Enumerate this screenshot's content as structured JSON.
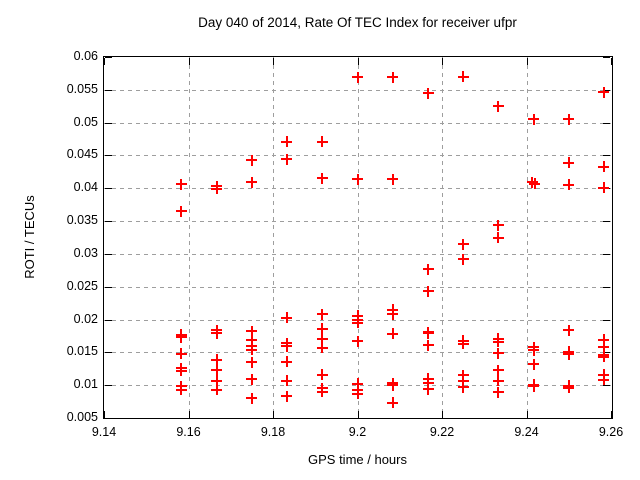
{
  "colors": {
    "background": "#ffffff",
    "marker": "#ff0000",
    "grid": "#9e9e9e",
    "axis": "#000000",
    "text": "#000000"
  },
  "chart_data": {
    "type": "scatter",
    "title": "Day 040 of 2014, Rate Of TEC Index for receiver ufpr",
    "xlabel": "GPS time / hours",
    "ylabel": "ROTI / TECUs",
    "xlim": [
      9.14,
      9.26
    ],
    "ylim": [
      0.005,
      0.06
    ],
    "xtick_values": [
      9.14,
      9.16,
      9.18,
      9.2,
      9.22,
      9.24,
      9.26
    ],
    "xtick_labels": [
      "9.14",
      "9.16",
      "9.18",
      "9.2",
      "9.22",
      "9.24",
      "9.26"
    ],
    "ytick_values": [
      0.005,
      0.01,
      0.015,
      0.02,
      0.025,
      0.03,
      0.035,
      0.04,
      0.045,
      0.05,
      0.055,
      0.06
    ],
    "ytick_labels": [
      "0.005",
      "0.01",
      "0.015",
      "0.02",
      "0.025",
      "0.03",
      "0.035",
      "0.04",
      "0.045",
      "0.05",
      "0.055",
      "0.06"
    ],
    "grid": true,
    "legend": "none",
    "marker": "plus",
    "series": [
      {
        "name": "ROTI",
        "points": [
          [
            9.1583,
            0.0406
          ],
          [
            9.1583,
            0.0365
          ],
          [
            9.1583,
            0.0177
          ],
          [
            9.1583,
            0.0173
          ],
          [
            9.1583,
            0.0148
          ],
          [
            9.1583,
            0.0126
          ],
          [
            9.1583,
            0.0122
          ],
          [
            9.1583,
            0.0098
          ],
          [
            9.1583,
            0.0093
          ],
          [
            9.1667,
            0.0403
          ],
          [
            9.1667,
            0.0399
          ],
          [
            9.1667,
            0.0184
          ],
          [
            9.1667,
            0.0179
          ],
          [
            9.1667,
            0.0139
          ],
          [
            9.1667,
            0.0123
          ],
          [
            9.1667,
            0.0107
          ],
          [
            9.1667,
            0.0093
          ],
          [
            9.175,
            0.0443
          ],
          [
            9.175,
            0.0409
          ],
          [
            9.175,
            0.0182
          ],
          [
            9.175,
            0.0169
          ],
          [
            9.175,
            0.016
          ],
          [
            9.175,
            0.0154
          ],
          [
            9.175,
            0.0135
          ],
          [
            9.175,
            0.0109
          ],
          [
            9.175,
            0.008
          ],
          [
            9.1833,
            0.0471
          ],
          [
            9.1833,
            0.0444
          ],
          [
            9.1833,
            0.0203
          ],
          [
            9.1833,
            0.0164
          ],
          [
            9.1833,
            0.0159
          ],
          [
            9.1833,
            0.0136
          ],
          [
            9.1833,
            0.0107
          ],
          [
            9.1833,
            0.0083
          ],
          [
            9.1917,
            0.0471
          ],
          [
            9.1917,
            0.0415
          ],
          [
            9.1917,
            0.0208
          ],
          [
            9.1917,
            0.0186
          ],
          [
            9.1917,
            0.0171
          ],
          [
            9.1917,
            0.0157
          ],
          [
            9.1917,
            0.0116
          ],
          [
            9.1917,
            0.0095
          ],
          [
            9.1917,
            0.009
          ],
          [
            9.2,
            0.0569
          ],
          [
            9.2,
            0.0414
          ],
          [
            9.2,
            0.0206
          ],
          [
            9.2,
            0.02
          ],
          [
            9.2,
            0.0195
          ],
          [
            9.2,
            0.0167
          ],
          [
            9.2,
            0.0102
          ],
          [
            9.2,
            0.0092
          ],
          [
            9.2,
            0.0087
          ],
          [
            9.2083,
            0.0569
          ],
          [
            9.2083,
            0.0414
          ],
          [
            9.2083,
            0.0215
          ],
          [
            9.2083,
            0.0208
          ],
          [
            9.2083,
            0.0178
          ],
          [
            9.2083,
            0.0103
          ],
          [
            9.2083,
            0.01
          ],
          [
            9.2083,
            0.0073
          ],
          [
            9.2167,
            0.0545
          ],
          [
            9.2167,
            0.0277
          ],
          [
            9.2167,
            0.0243
          ],
          [
            9.2167,
            0.0181
          ],
          [
            9.2167,
            0.0179
          ],
          [
            9.2167,
            0.0161
          ],
          [
            9.2167,
            0.011
          ],
          [
            9.2167,
            0.0104
          ],
          [
            9.2167,
            0.0094
          ],
          [
            9.225,
            0.057
          ],
          [
            9.225,
            0.0315
          ],
          [
            9.225,
            0.0292
          ],
          [
            9.225,
            0.0168
          ],
          [
            9.225,
            0.0163
          ],
          [
            9.225,
            0.0115
          ],
          [
            9.225,
            0.0107
          ],
          [
            9.225,
            0.0097
          ],
          [
            9.2333,
            0.0525
          ],
          [
            9.2333,
            0.0344
          ],
          [
            9.2333,
            0.0325
          ],
          [
            9.2333,
            0.0171
          ],
          [
            9.2333,
            0.0166
          ],
          [
            9.2333,
            0.0149
          ],
          [
            9.2333,
            0.0123
          ],
          [
            9.2333,
            0.0107
          ],
          [
            9.2333,
            0.0089
          ],
          [
            9.2417,
            0.0505
          ],
          [
            9.2414,
            0.0409
          ],
          [
            9.242,
            0.0407
          ],
          [
            9.2417,
            0.0158
          ],
          [
            9.2417,
            0.0153
          ],
          [
            9.2417,
            0.0132
          ],
          [
            9.2417,
            0.0101
          ],
          [
            9.2417,
            0.0098
          ],
          [
            9.25,
            0.0505
          ],
          [
            9.25,
            0.0439
          ],
          [
            9.25,
            0.0405
          ],
          [
            9.25,
            0.0184
          ],
          [
            9.25,
            0.0151
          ],
          [
            9.25,
            0.0147
          ],
          [
            9.25,
            0.0099
          ],
          [
            9.25,
            0.0096
          ],
          [
            9.2583,
            0.0546
          ],
          [
            9.2583,
            0.0433
          ],
          [
            9.2583,
            0.0401
          ],
          [
            9.2583,
            0.0169
          ],
          [
            9.2583,
            0.0158
          ],
          [
            9.2583,
            0.0146
          ],
          [
            9.2583,
            0.0143
          ],
          [
            9.2583,
            0.0116
          ],
          [
            9.2583,
            0.0108
          ]
        ]
      }
    ]
  }
}
